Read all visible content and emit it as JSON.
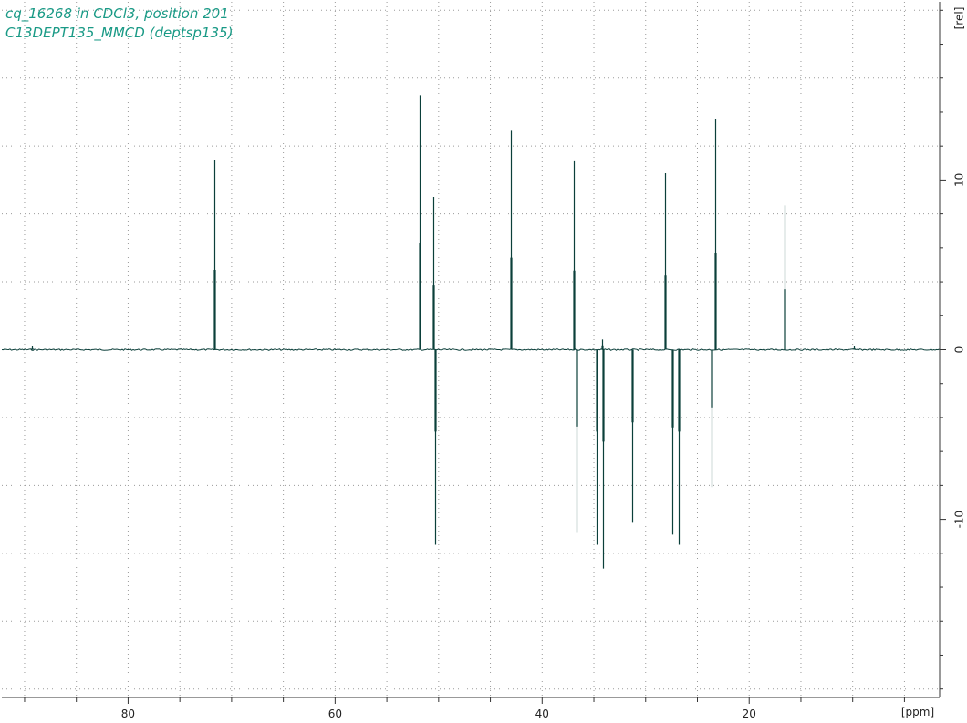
{
  "title": {
    "line1": "cq_16268 in CDCl3, position 201",
    "line2": "C13DEPT135_MMCD (deptsp135)"
  },
  "colors": {
    "spectrum": "#0b3f3a",
    "title": "#1a9a86",
    "grid": "#9a9a9a",
    "axis": "#333333"
  },
  "chart_data": {
    "type": "line",
    "xlabel": "[ppm]",
    "ylabel": "[rel]",
    "x_reversed": true,
    "xlim": [
      92.2,
      1.6
    ],
    "ylim": [
      -20.5,
      20.5
    ],
    "x_ticks": [
      80,
      60,
      40,
      20
    ],
    "y_ticks": [
      10,
      0,
      -10
    ],
    "grid": true,
    "peaks": [
      {
        "ppm": 71.7,
        "value": 11.2
      },
      {
        "ppm": 51.8,
        "value": 15.0
      },
      {
        "ppm": 50.5,
        "value": 9.0
      },
      {
        "ppm": 50.3,
        "value": -11.5
      },
      {
        "ppm": 43.0,
        "value": 12.9
      },
      {
        "ppm": 36.9,
        "value": 11.1
      },
      {
        "ppm": 36.7,
        "value": -10.8
      },
      {
        "ppm": 34.7,
        "value": -11.5
      },
      {
        "ppm": 34.2,
        "value": 0.6
      },
      {
        "ppm": 34.1,
        "value": -12.9
      },
      {
        "ppm": 31.3,
        "value": -10.2
      },
      {
        "ppm": 28.1,
        "value": 10.4
      },
      {
        "ppm": 27.4,
        "value": -10.9
      },
      {
        "ppm": 26.8,
        "value": -11.5
      },
      {
        "ppm": 23.6,
        "value": -8.1
      },
      {
        "ppm": 23.3,
        "value": 13.6
      },
      {
        "ppm": 16.6,
        "value": 8.5
      },
      {
        "ppm": 89.3,
        "value": 0.2
      },
      {
        "ppm": 9.9,
        "value": 0.2
      }
    ]
  }
}
